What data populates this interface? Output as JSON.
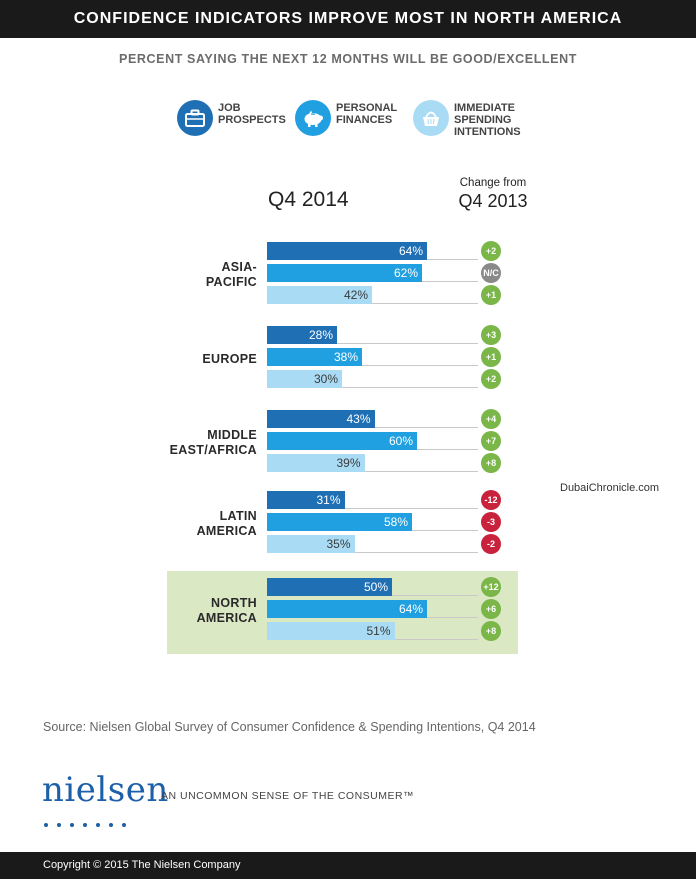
{
  "header": {
    "title": "CONFIDENCE INDICATORS IMPROVE MOST IN NORTH AMERICA",
    "subtitle": "PERCENT SAYING THE NEXT 12 MONTHS WILL BE GOOD/EXCELLENT"
  },
  "legend": [
    {
      "label": "JOB\nPROSPECTS",
      "icon": "briefcase-icon",
      "color": "#1f6fb5"
    },
    {
      "label": "PERSONAL\nFINANCES",
      "icon": "piggy-bank-icon",
      "color": "#20a0e0"
    },
    {
      "label": "IMMEDIATE\nSPENDING\nINTENTIONS",
      "icon": "shopping-basket-icon",
      "color": "#a9dcf4"
    }
  ],
  "columns": {
    "left": "Q4 2014",
    "right_top": "Change from",
    "right_bottom": "Q4 2013"
  },
  "colors": {
    "job": "#1f6fb5",
    "finances": "#20a0e0",
    "spending": "#a9dcf4",
    "positive": "#7ab648",
    "negative": "#c8223c",
    "neutral": "#8a8a8a",
    "highlight": "#dbe8c4"
  },
  "chart_data": {
    "type": "bar",
    "orientation": "horizontal",
    "categories": [
      "ASIA-\nPACIFIC",
      "EUROPE",
      "MIDDLE\nEAST/AFRICA",
      "LATIN\nAMERICA",
      "NORTH\nAMERICA"
    ],
    "series": [
      {
        "name": "JOB PROSPECTS",
        "values": [
          64,
          28,
          43,
          31,
          50
        ],
        "labels": [
          "64%",
          "28%",
          "43%",
          "31%",
          "50%"
        ]
      },
      {
        "name": "PERSONAL FINANCES",
        "values": [
          62,
          38,
          60,
          58,
          64
        ],
        "labels": [
          "62%",
          "38%",
          "60%",
          "58%",
          "64%"
        ]
      },
      {
        "name": "IMMEDIATE SPENDING INTENTIONS",
        "values": [
          42,
          30,
          39,
          35,
          51
        ],
        "labels": [
          "42%",
          "30%",
          "39%",
          "35%",
          "51%"
        ]
      }
    ],
    "changes": [
      [
        "+2",
        "N/C",
        "+1"
      ],
      [
        "+3",
        "+1",
        "+2"
      ],
      [
        "+4",
        "+7",
        "+8"
      ],
      [
        "-12",
        "-3",
        "-2"
      ],
      [
        "+12",
        "+6",
        "+8"
      ]
    ],
    "highlighted_category": "NORTH\nAMERICA",
    "xlim": [
      0,
      100
    ]
  },
  "watermark": "DubaiChronicle.com",
  "source": "Source: Nielsen Global Survey of Consumer Confidence & Spending Intentions, Q4 2014",
  "brand": {
    "logo": "nielsen",
    "tagline": "AN UNCOMMON SENSE OF THE CONSUMER™"
  },
  "footer": {
    "copyright": "Copyright © 2015 The Nielsen Company"
  }
}
